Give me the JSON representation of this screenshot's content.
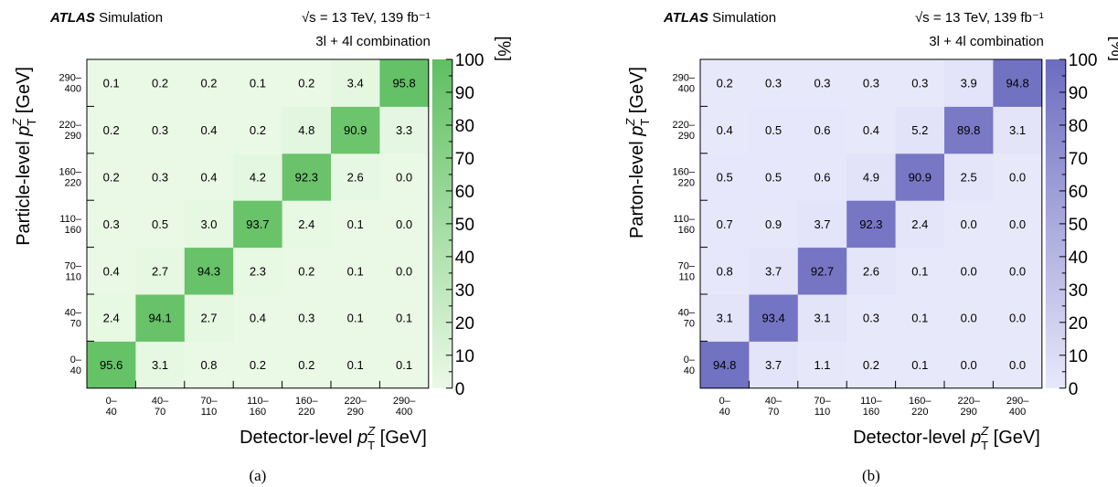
{
  "panel_labels": [
    "(a)",
    "(b)"
  ],
  "chart_data": [
    {
      "type": "heatmap",
      "experiment": "ATLAS",
      "experiment_suffix": "Simulation",
      "energy_label": "√s = 13 TeV, 139 fb⁻¹",
      "channel_label": "3l + 4l combination",
      "xlabel_prefix": "Detector-level",
      "ylabel_prefix": "Particle-level",
      "var_symbol": "p",
      "var_sup": "Z",
      "var_sub": "T",
      "unit": "[GeV]",
      "zlabel": "[%]",
      "zlim": [
        0,
        100
      ],
      "zticks": [
        "0",
        "10",
        "20",
        "30",
        "40",
        "50",
        "60",
        "70",
        "80",
        "90",
        "100"
      ],
      "x_bins_top": [
        "0–",
        "40–",
        "70–",
        "110–",
        "160–",
        "220–",
        "290–"
      ],
      "x_bins_bottom": [
        "40",
        "70",
        "110",
        "160",
        "220",
        "290",
        "400"
      ],
      "y_bins_top": [
        "0–",
        "40–",
        "70–",
        "110–",
        "160–",
        "220–",
        "290–"
      ],
      "y_bins_bottom": [
        "40",
        "70",
        "110",
        "160",
        "220",
        "290",
        "400"
      ],
      "values_by_row_bottom_to_top": [
        [
          "95.6",
          "3.1",
          "0.8",
          "0.2",
          "0.2",
          "0.1",
          "0.1"
        ],
        [
          "2.4",
          "94.1",
          "2.7",
          "0.4",
          "0.3",
          "0.1",
          "0.1"
        ],
        [
          "0.4",
          "2.7",
          "94.3",
          "2.3",
          "0.2",
          "0.1",
          "0.0"
        ],
        [
          "0.3",
          "0.5",
          "3.0",
          "93.7",
          "2.4",
          "0.1",
          "0.0"
        ],
        [
          "0.2",
          "0.3",
          "0.4",
          "4.2",
          "92.3",
          "2.6",
          "0.0"
        ],
        [
          "0.2",
          "0.3",
          "0.4",
          "0.2",
          "4.8",
          "90.9",
          "3.3"
        ],
        [
          "0.1",
          "0.2",
          "0.2",
          "0.1",
          "0.2",
          "3.4",
          "95.8"
        ]
      ],
      "color_low": "#eaf9e6",
      "color_high": "#5fbf61"
    },
    {
      "type": "heatmap",
      "experiment": "ATLAS",
      "experiment_suffix": "Simulation",
      "energy_label": "√s = 13 TeV, 139 fb⁻¹",
      "channel_label": "3l + 4l combination",
      "xlabel_prefix": "Detector-level",
      "ylabel_prefix": "Parton-level",
      "var_symbol": "p",
      "var_sup": "Z",
      "var_sub": "T",
      "unit": "[GeV]",
      "zlabel": "[%]",
      "zlim": [
        0,
        100
      ],
      "zticks": [
        "0",
        "10",
        "20",
        "30",
        "40",
        "50",
        "60",
        "70",
        "80",
        "90",
        "100"
      ],
      "x_bins_top": [
        "0–",
        "40–",
        "70–",
        "110–",
        "160–",
        "220–",
        "290–"
      ],
      "x_bins_bottom": [
        "40",
        "70",
        "110",
        "160",
        "220",
        "290",
        "400"
      ],
      "y_bins_top": [
        "0–",
        "40–",
        "70–",
        "110–",
        "160–",
        "220–",
        "290–"
      ],
      "y_bins_bottom": [
        "40",
        "70",
        "110",
        "160",
        "220",
        "290",
        "400"
      ],
      "values_by_row_bottom_to_top": [
        [
          "94.8",
          "3.7",
          "1.1",
          "0.2",
          "0.1",
          "0.0",
          "0.0"
        ],
        [
          "3.1",
          "93.4",
          "3.1",
          "0.3",
          "0.1",
          "0.0",
          "0.0"
        ],
        [
          "0.8",
          "3.7",
          "92.7",
          "2.6",
          "0.1",
          "0.0",
          "0.0"
        ],
        [
          "0.7",
          "0.9",
          "3.7",
          "92.3",
          "2.4",
          "0.0",
          "0.0"
        ],
        [
          "0.5",
          "0.5",
          "0.6",
          "4.9",
          "90.9",
          "2.5",
          "0.0"
        ],
        [
          "0.4",
          "0.5",
          "0.6",
          "0.4",
          "5.2",
          "89.8",
          "3.1"
        ],
        [
          "0.2",
          "0.3",
          "0.3",
          "0.3",
          "0.3",
          "3.9",
          "94.8"
        ]
      ],
      "color_low": "#e8e8fb",
      "color_high": "#6c6cc0"
    }
  ]
}
